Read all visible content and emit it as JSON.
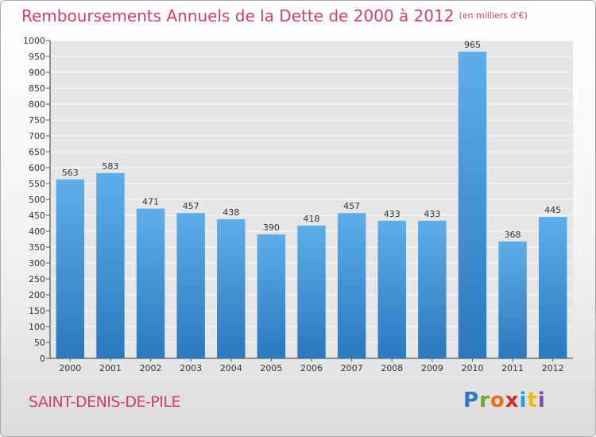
{
  "chart_data": {
    "type": "bar",
    "title": "Remboursements Annuels de la Dette de 2000 à 2012",
    "subtitle": "(en milliers d'€)",
    "categories": [
      "2000",
      "2001",
      "2002",
      "2003",
      "2004",
      "2005",
      "2006",
      "2007",
      "2008",
      "2009",
      "2010",
      "2011",
      "2012"
    ],
    "values": [
      563,
      583,
      471,
      457,
      438,
      390,
      418,
      457,
      433,
      433,
      965,
      368,
      445
    ],
    "xlabel": "",
    "ylabel": "",
    "ylim": [
      0,
      1000
    ],
    "ytick_step": 50,
    "grid": true,
    "bar_color": "#4a9fe0"
  },
  "footer": {
    "city": "SAINT-DENIS-DE-PILE",
    "logo_letters": [
      "P",
      "r",
      "o",
      "x",
      "i",
      "t",
      "i"
    ]
  }
}
